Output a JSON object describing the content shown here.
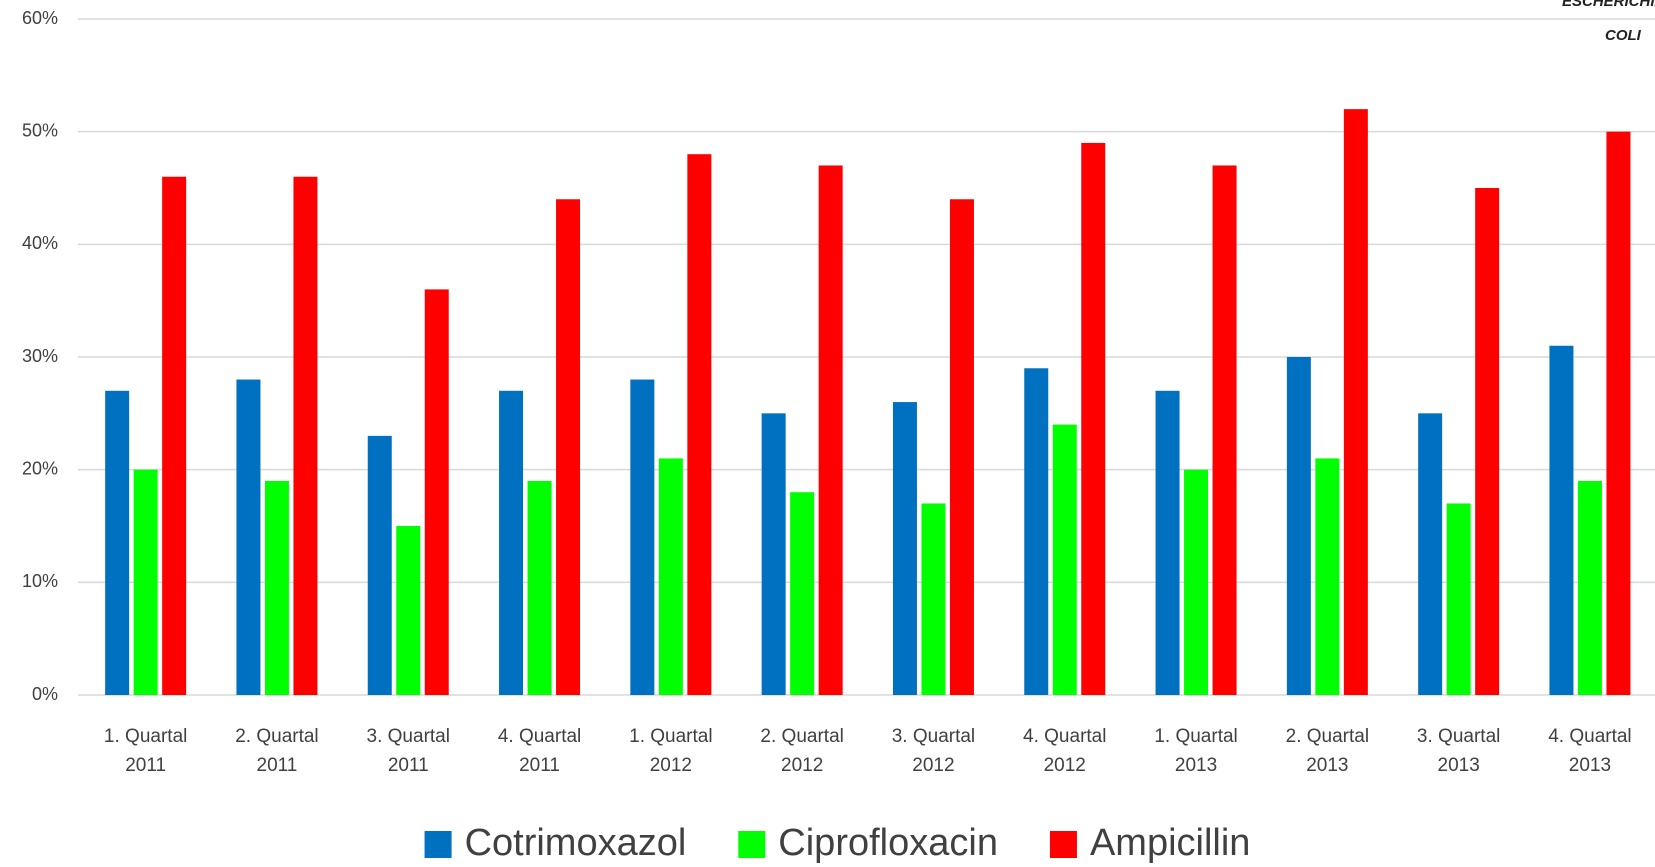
{
  "chart_data": {
    "type": "bar",
    "annotations": [
      "ESCHERICHIA",
      "COLI"
    ],
    "categories": [
      "1. Quartal 2011",
      "2. Quartal 2011",
      "3. Quartal 2011",
      "4. Quartal 2011",
      "1. Quartal 2012",
      "2. Quartal 2012",
      "3. Quartal 2012",
      "4. Quartal 2012",
      "1. Quartal 2013",
      "2. Quartal 2013",
      "3. Quartal 2013",
      "4. Quartal 2013"
    ],
    "series": [
      {
        "name": "Cotrimoxazol",
        "color": "#0070c0",
        "values": [
          27,
          28,
          23,
          27,
          28,
          25,
          26,
          29,
          27,
          30,
          25,
          31
        ]
      },
      {
        "name": "Ciprofloxacin",
        "color": "#00ff00",
        "values": [
          20,
          19,
          15,
          19,
          21,
          18,
          17,
          24,
          20,
          21,
          17,
          19
        ]
      },
      {
        "name": "Ampicillin",
        "color": "#ff0000",
        "values": [
          46,
          46,
          36,
          44,
          48,
          47,
          44,
          49,
          47,
          52,
          45,
          50
        ]
      }
    ],
    "ylim": [
      0,
      60
    ],
    "yticks": [
      {
        "value": 0,
        "label": "0%"
      },
      {
        "value": 10,
        "label": "10%"
      },
      {
        "value": 20,
        "label": "20%"
      },
      {
        "value": 30,
        "label": "30%"
      },
      {
        "value": 40,
        "label": "40%"
      },
      {
        "value": 50,
        "label": "50%"
      },
      {
        "value": 60,
        "label": "60%"
      }
    ],
    "grid": true,
    "legend": "bottom"
  }
}
